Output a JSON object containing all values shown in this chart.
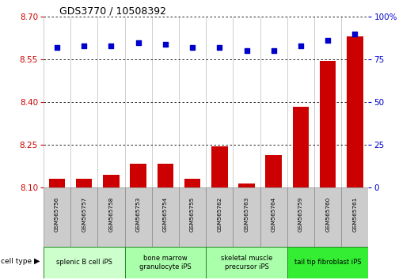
{
  "title": "GDS3770 / 10508392",
  "samples": [
    "GSM565756",
    "GSM565757",
    "GSM565758",
    "GSM565753",
    "GSM565754",
    "GSM565755",
    "GSM565762",
    "GSM565763",
    "GSM565764",
    "GSM565759",
    "GSM565760",
    "GSM565761"
  ],
  "transformed_count": [
    8.13,
    8.13,
    8.145,
    8.185,
    8.185,
    8.13,
    8.245,
    8.115,
    8.215,
    8.385,
    8.545,
    8.63
  ],
  "percentile_rank": [
    82,
    83,
    83,
    85,
    84,
    82,
    82,
    80,
    80,
    83,
    86,
    90
  ],
  "ylim_left": [
    8.1,
    8.7
  ],
  "ylim_right": [
    0,
    100
  ],
  "yticks_left": [
    8.1,
    8.25,
    8.4,
    8.55,
    8.7
  ],
  "yticks_right": [
    0,
    25,
    50,
    75,
    100
  ],
  "bar_color": "#cc0000",
  "dot_color": "#0000cc",
  "background_color": "#ffffff",
  "left_axis_color": "#cc0000",
  "right_axis_color": "#0000cc",
  "group_colors": [
    "#ccffcc",
    "#aaffaa",
    "#aaffaa",
    "#33ee33"
  ],
  "group_labels": [
    "splenic B cell iPS",
    "bone marrow\ngranulocyte iPS",
    "skeletal muscle\nprecursor iPS",
    "tail tip fibroblast iPS"
  ],
  "group_ranges": [
    [
      0,
      3
    ],
    [
      3,
      6
    ],
    [
      6,
      9
    ],
    [
      9,
      12
    ]
  ]
}
